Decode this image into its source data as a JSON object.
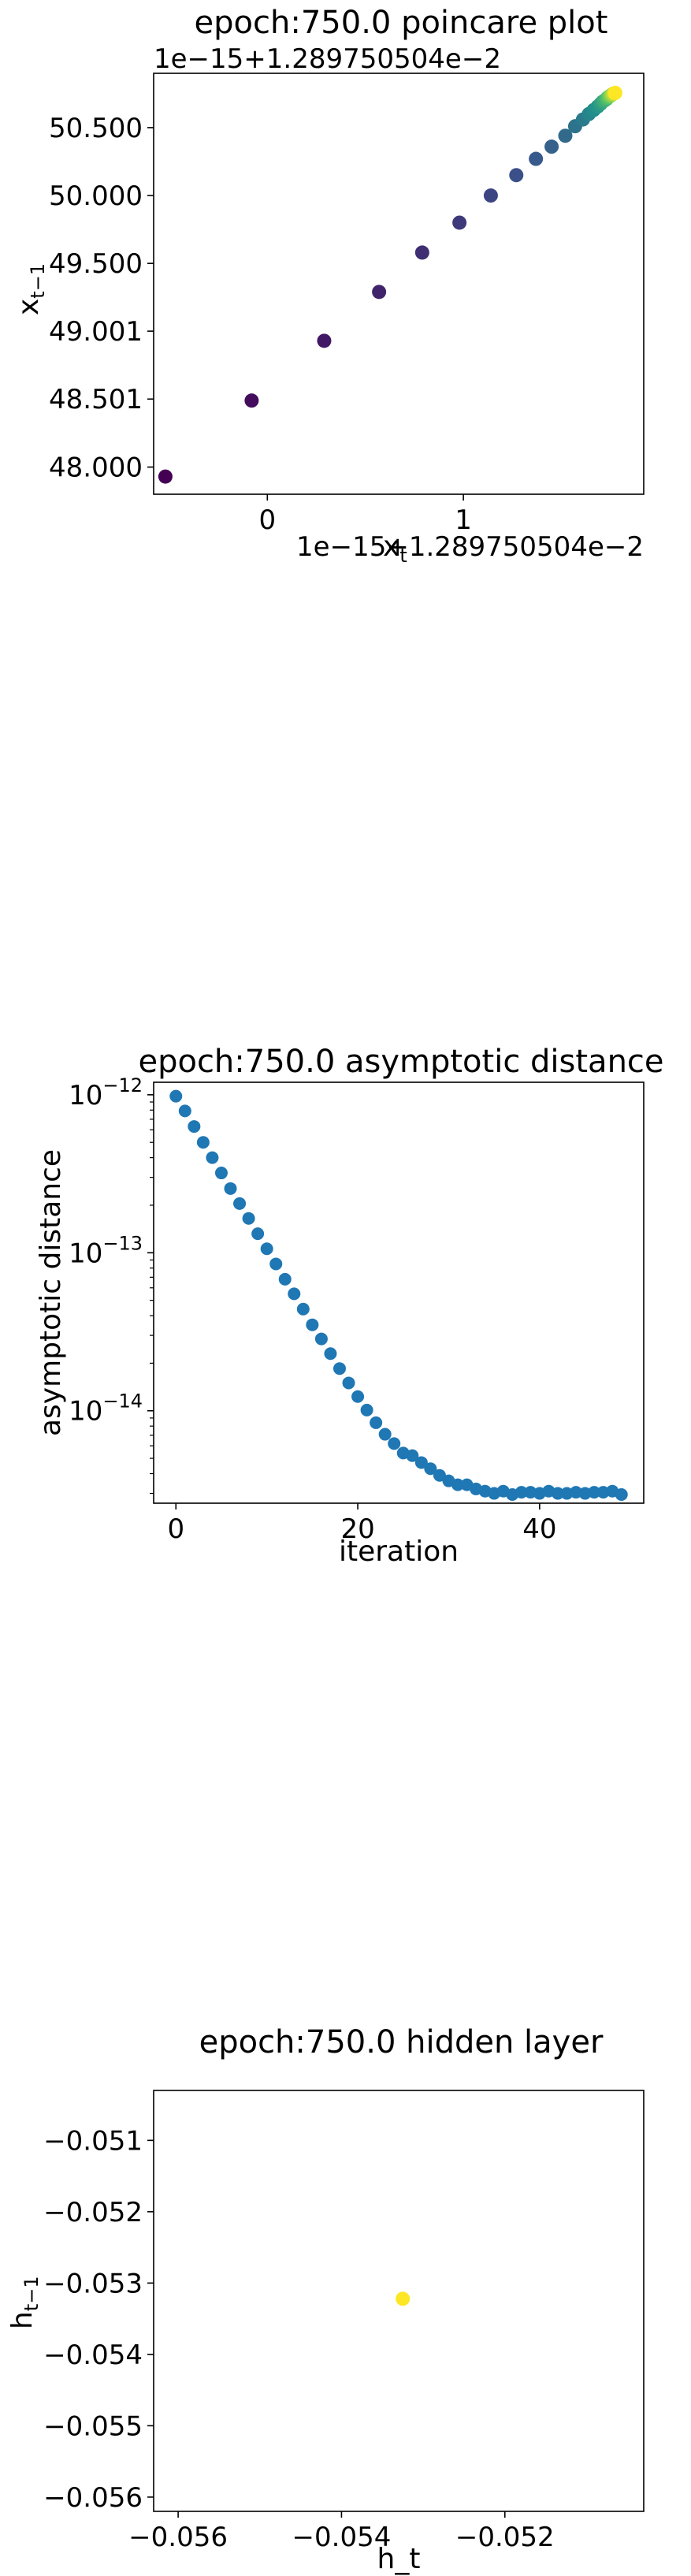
{
  "chart_data": [
    {
      "type": "scatter",
      "title": "epoch:750.0 poincare plot",
      "xlabel": "x_t",
      "ylabel": "x_{t-1}",
      "x_offset_label": "1e−15+1.289750504e−2",
      "y_offset_label": "1e−15+1.289750504e−2",
      "x_ticks": [
        "0",
        "1"
      ],
      "y_ticks": [
        "48.000",
        "48.501",
        "49.001",
        "49.500",
        "50.000",
        "50.500"
      ],
      "xlim": [
        -0.58,
        1.92
      ],
      "ylim": [
        47.8,
        50.9
      ],
      "colormap": [
        "#440154",
        "#3b528b",
        "#21918c",
        "#5ec962",
        "#fde725"
      ],
      "points": [
        {
          "x": -0.52,
          "y": 47.93
        },
        {
          "x": -0.08,
          "y": 48.49
        },
        {
          "x": 0.29,
          "y": 48.93
        },
        {
          "x": 0.57,
          "y": 49.29
        },
        {
          "x": 0.79,
          "y": 49.58
        },
        {
          "x": 0.98,
          "y": 49.8
        },
        {
          "x": 1.14,
          "y": 50.0
        },
        {
          "x": 1.27,
          "y": 50.15
        },
        {
          "x": 1.37,
          "y": 50.27
        },
        {
          "x": 1.45,
          "y": 50.36
        },
        {
          "x": 1.52,
          "y": 50.44
        },
        {
          "x": 1.57,
          "y": 50.51
        },
        {
          "x": 1.61,
          "y": 50.56
        },
        {
          "x": 1.64,
          "y": 50.6
        },
        {
          "x": 1.665,
          "y": 50.63
        },
        {
          "x": 1.685,
          "y": 50.655
        },
        {
          "x": 1.7,
          "y": 50.675
        },
        {
          "x": 1.71,
          "y": 50.69
        },
        {
          "x": 1.72,
          "y": 50.7
        },
        {
          "x": 1.73,
          "y": 50.71
        },
        {
          "x": 1.735,
          "y": 50.72
        },
        {
          "x": 1.74,
          "y": 50.725
        },
        {
          "x": 1.745,
          "y": 50.73
        },
        {
          "x": 1.75,
          "y": 50.735
        },
        {
          "x": 1.755,
          "y": 50.74
        },
        {
          "x": 1.76,
          "y": 50.745
        },
        {
          "x": 1.765,
          "y": 50.75
        },
        {
          "x": 1.77,
          "y": 50.752
        },
        {
          "x": 1.772,
          "y": 50.754
        },
        {
          "x": 1.775,
          "y": 50.756
        }
      ]
    },
    {
      "type": "scatter",
      "title": "epoch:750.0 asymptotic distance",
      "xlabel": "iteration",
      "ylabel": "asymptotic distance",
      "yscale": "log",
      "x_ticks": [
        0,
        20,
        40
      ],
      "y_ticks": [
        1e-12,
        1e-13,
        1e-14
      ],
      "xlim": [
        -2.45,
        51.45
      ],
      "ylim": [
        2.6e-15,
        1.2e-12
      ],
      "color": "#1f77b4",
      "x": [
        0,
        1,
        2,
        3,
        4,
        5,
        6,
        7,
        8,
        9,
        10,
        11,
        12,
        13,
        14,
        15,
        16,
        17,
        18,
        19,
        20,
        21,
        22,
        23,
        24,
        25,
        26,
        27,
        28,
        29,
        30,
        31,
        32,
        33,
        34,
        35,
        36,
        37,
        38,
        39,
        40,
        41,
        42,
        43,
        44,
        45,
        46,
        47,
        48,
        49
      ],
      "y": [
        9.8e-13,
        7.9e-13,
        6.3e-13,
        5e-13,
        4e-13,
        3.2e-13,
        2.55e-13,
        2.05e-13,
        1.65e-13,
        1.32e-13,
        1.06e-13,
        8.5e-14,
        6.8e-14,
        5.5e-14,
        4.4e-14,
        3.5e-14,
        2.85e-14,
        2.3e-14,
        1.85e-14,
        1.5e-14,
        1.23e-14,
        1.01e-14,
        8.4e-15,
        7.1e-15,
        6.2e-15,
        5.4e-15,
        5.2e-15,
        4.7e-15,
        4.3e-15,
        3.9e-15,
        3.6e-15,
        3.4e-15,
        3.4e-15,
        3.2e-15,
        3.1e-15,
        3e-15,
        3.1e-15,
        2.95e-15,
        3.05e-15,
        3.05e-15,
        3e-15,
        3.1e-15,
        3e-15,
        3e-15,
        3.05e-15,
        3e-15,
        3.05e-15,
        3.05e-15,
        3.1e-15,
        2.95e-15
      ]
    },
    {
      "type": "scatter",
      "title": "epoch:750.0 hidden layer",
      "xlabel": "h_t",
      "ylabel": "h_{t-1}",
      "x_ticks": [
        "−0.056",
        "−0.054",
        "−0.052"
      ],
      "y_ticks": [
        "−0.051",
        "−0.052",
        "−0.053",
        "−0.054",
        "−0.055",
        "−0.056"
      ],
      "xlim": [
        -0.0563,
        -0.0503
      ],
      "ylim": [
        -0.0562,
        -0.0503
      ],
      "color": "#fde725",
      "points": [
        {
          "x": -0.05325,
          "y": -0.05322
        }
      ]
    }
  ]
}
